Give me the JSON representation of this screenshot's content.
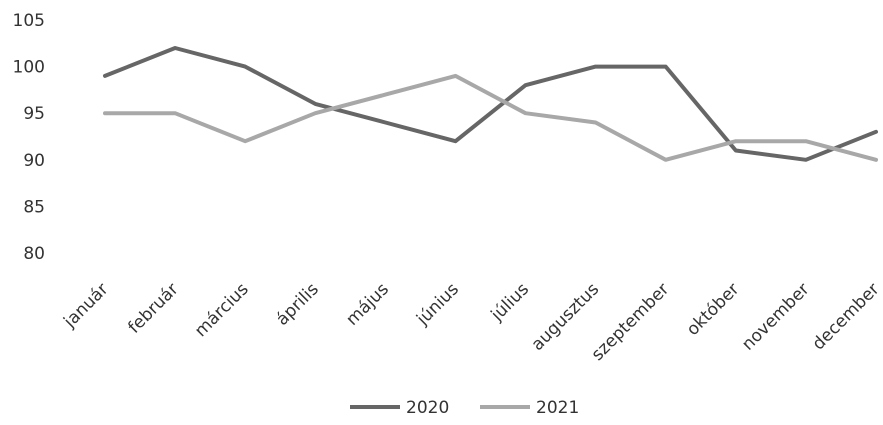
{
  "chart_data": {
    "type": "line",
    "title": "",
    "xlabel": "",
    "ylabel": "",
    "categories": [
      "január",
      "február",
      "március",
      "április",
      "május",
      "június",
      "július",
      "augusztus",
      "szeptember",
      "október",
      "november",
      "december"
    ],
    "ylim": [
      80,
      105
    ],
    "yticks": [
      "80",
      "85",
      "90",
      "95",
      "100",
      "105"
    ],
    "grid": false,
    "legend_position": "bottom",
    "series": [
      {
        "name": "2020",
        "color": "#666666",
        "values": [
          99,
          102,
          100,
          96,
          94,
          92,
          98,
          100,
          100,
          91,
          90,
          93
        ]
      },
      {
        "name": "2021",
        "color": "#a8a8a8",
        "values": [
          95,
          95,
          92,
          95,
          97,
          99,
          95,
          94,
          90,
          92,
          92,
          90
        ]
      }
    ]
  }
}
